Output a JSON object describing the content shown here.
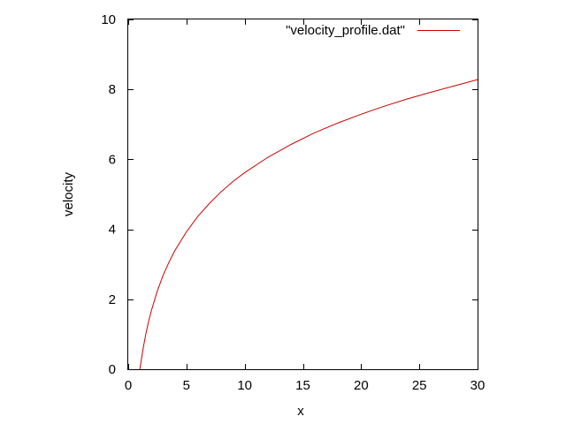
{
  "chart_data": {
    "type": "line",
    "title": "",
    "xlabel": "x",
    "ylabel": "velocity",
    "xlim": [
      0,
      30
    ],
    "ylim": [
      0,
      10
    ],
    "x_ticks": [
      0,
      5,
      10,
      15,
      20,
      25,
      30
    ],
    "y_ticks": [
      0,
      2,
      4,
      6,
      8,
      10
    ],
    "grid": false,
    "legend_position": "top-right",
    "series": [
      {
        "name": "\"velocity_profile.dat\"",
        "color": "#cc0000",
        "x": [
          1.0,
          1.25,
          1.5,
          1.75,
          2,
          2.5,
          3,
          3.5,
          4,
          5,
          6,
          7,
          8,
          9,
          10,
          12,
          14,
          16,
          18,
          20,
          22,
          24,
          26,
          28,
          30
        ],
        "y": [
          0,
          0.54,
          0.99,
          1.37,
          1.69,
          2.24,
          2.69,
          3.06,
          3.39,
          3.93,
          4.38,
          4.75,
          5.08,
          5.37,
          5.62,
          6.06,
          6.43,
          6.76,
          7.04,
          7.29,
          7.52,
          7.73,
          7.92,
          8.1,
          8.28
        ]
      }
    ]
  }
}
